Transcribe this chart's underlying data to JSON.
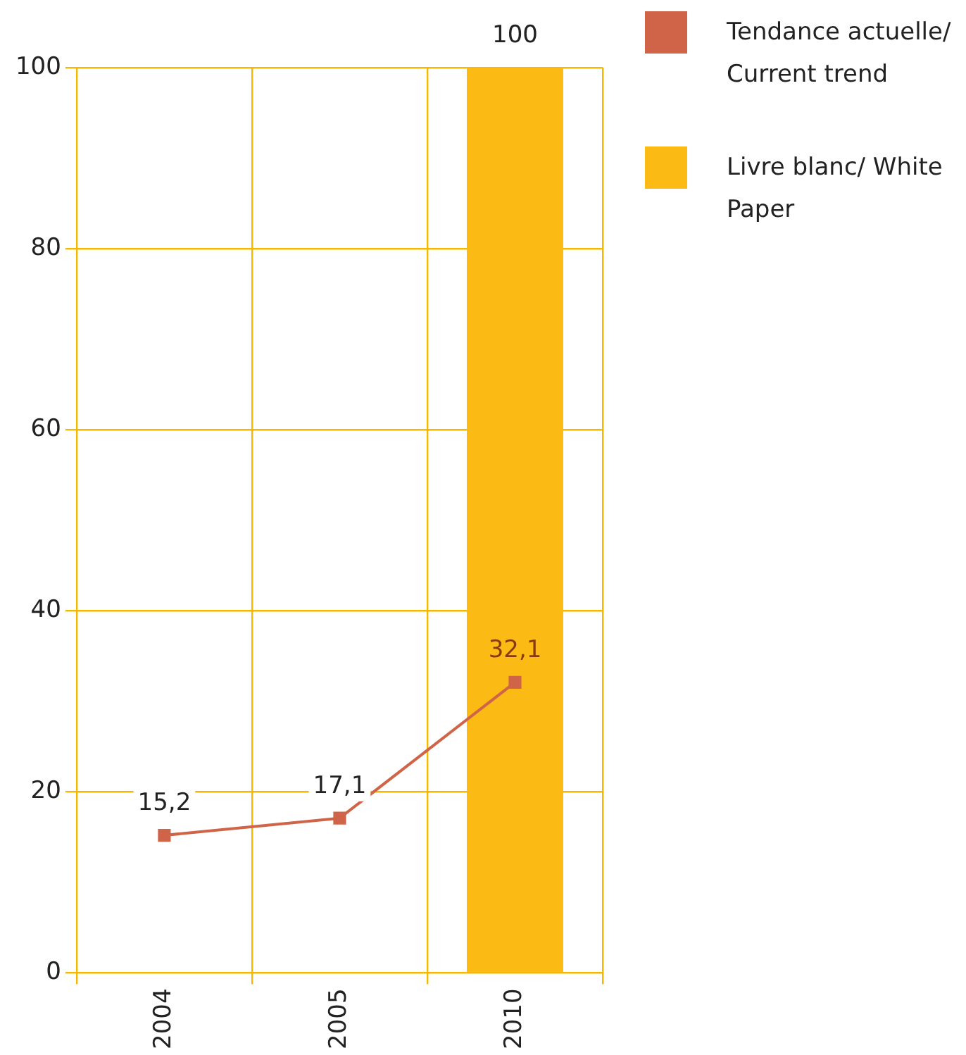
{
  "chart_data": {
    "type": "bar",
    "categories": [
      "2004",
      "2005",
      "2010"
    ],
    "series": [
      {
        "name": "Tendance actuelle/ Current trend",
        "type": "line",
        "color": "#cf6448",
        "values": [
          15.2,
          17.1,
          32.1
        ],
        "value_labels": [
          "15,2",
          "17,1",
          "32,1"
        ]
      },
      {
        "name": "Livre blanc/ White Paper",
        "color": "#fbbb14",
        "values": [
          null,
          null,
          100
        ],
        "value_labels": [
          null,
          null,
          "100"
        ]
      }
    ],
    "ylim": [
      0,
      100
    ],
    "yticks": [
      0,
      20,
      40,
      60,
      80,
      100
    ],
    "grid": true,
    "legend": "top right",
    "marker": "square"
  }
}
